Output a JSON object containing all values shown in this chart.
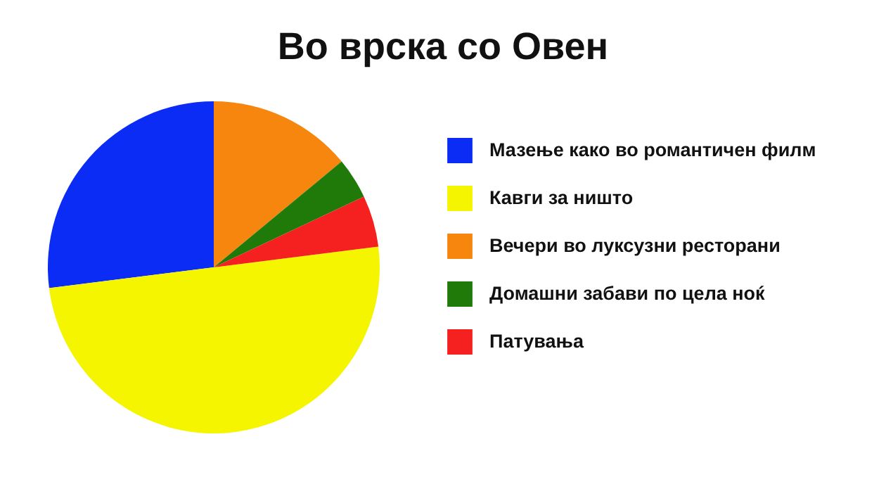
{
  "chart_data": {
    "type": "pie",
    "title": "Во врска со Овен",
    "categories": [
      "Мазење како во романтичен филм",
      "Кавги за ништо",
      "Вечери во луксузни ресторани",
      "Домашни забави по цела ноќ",
      "Патувања"
    ],
    "values": [
      27,
      50,
      14,
      4,
      5
    ],
    "colors": [
      "#0a2cf5",
      "#f5f500",
      "#f7860f",
      "#1f7a0a",
      "#f52020"
    ],
    "legend": "right"
  }
}
